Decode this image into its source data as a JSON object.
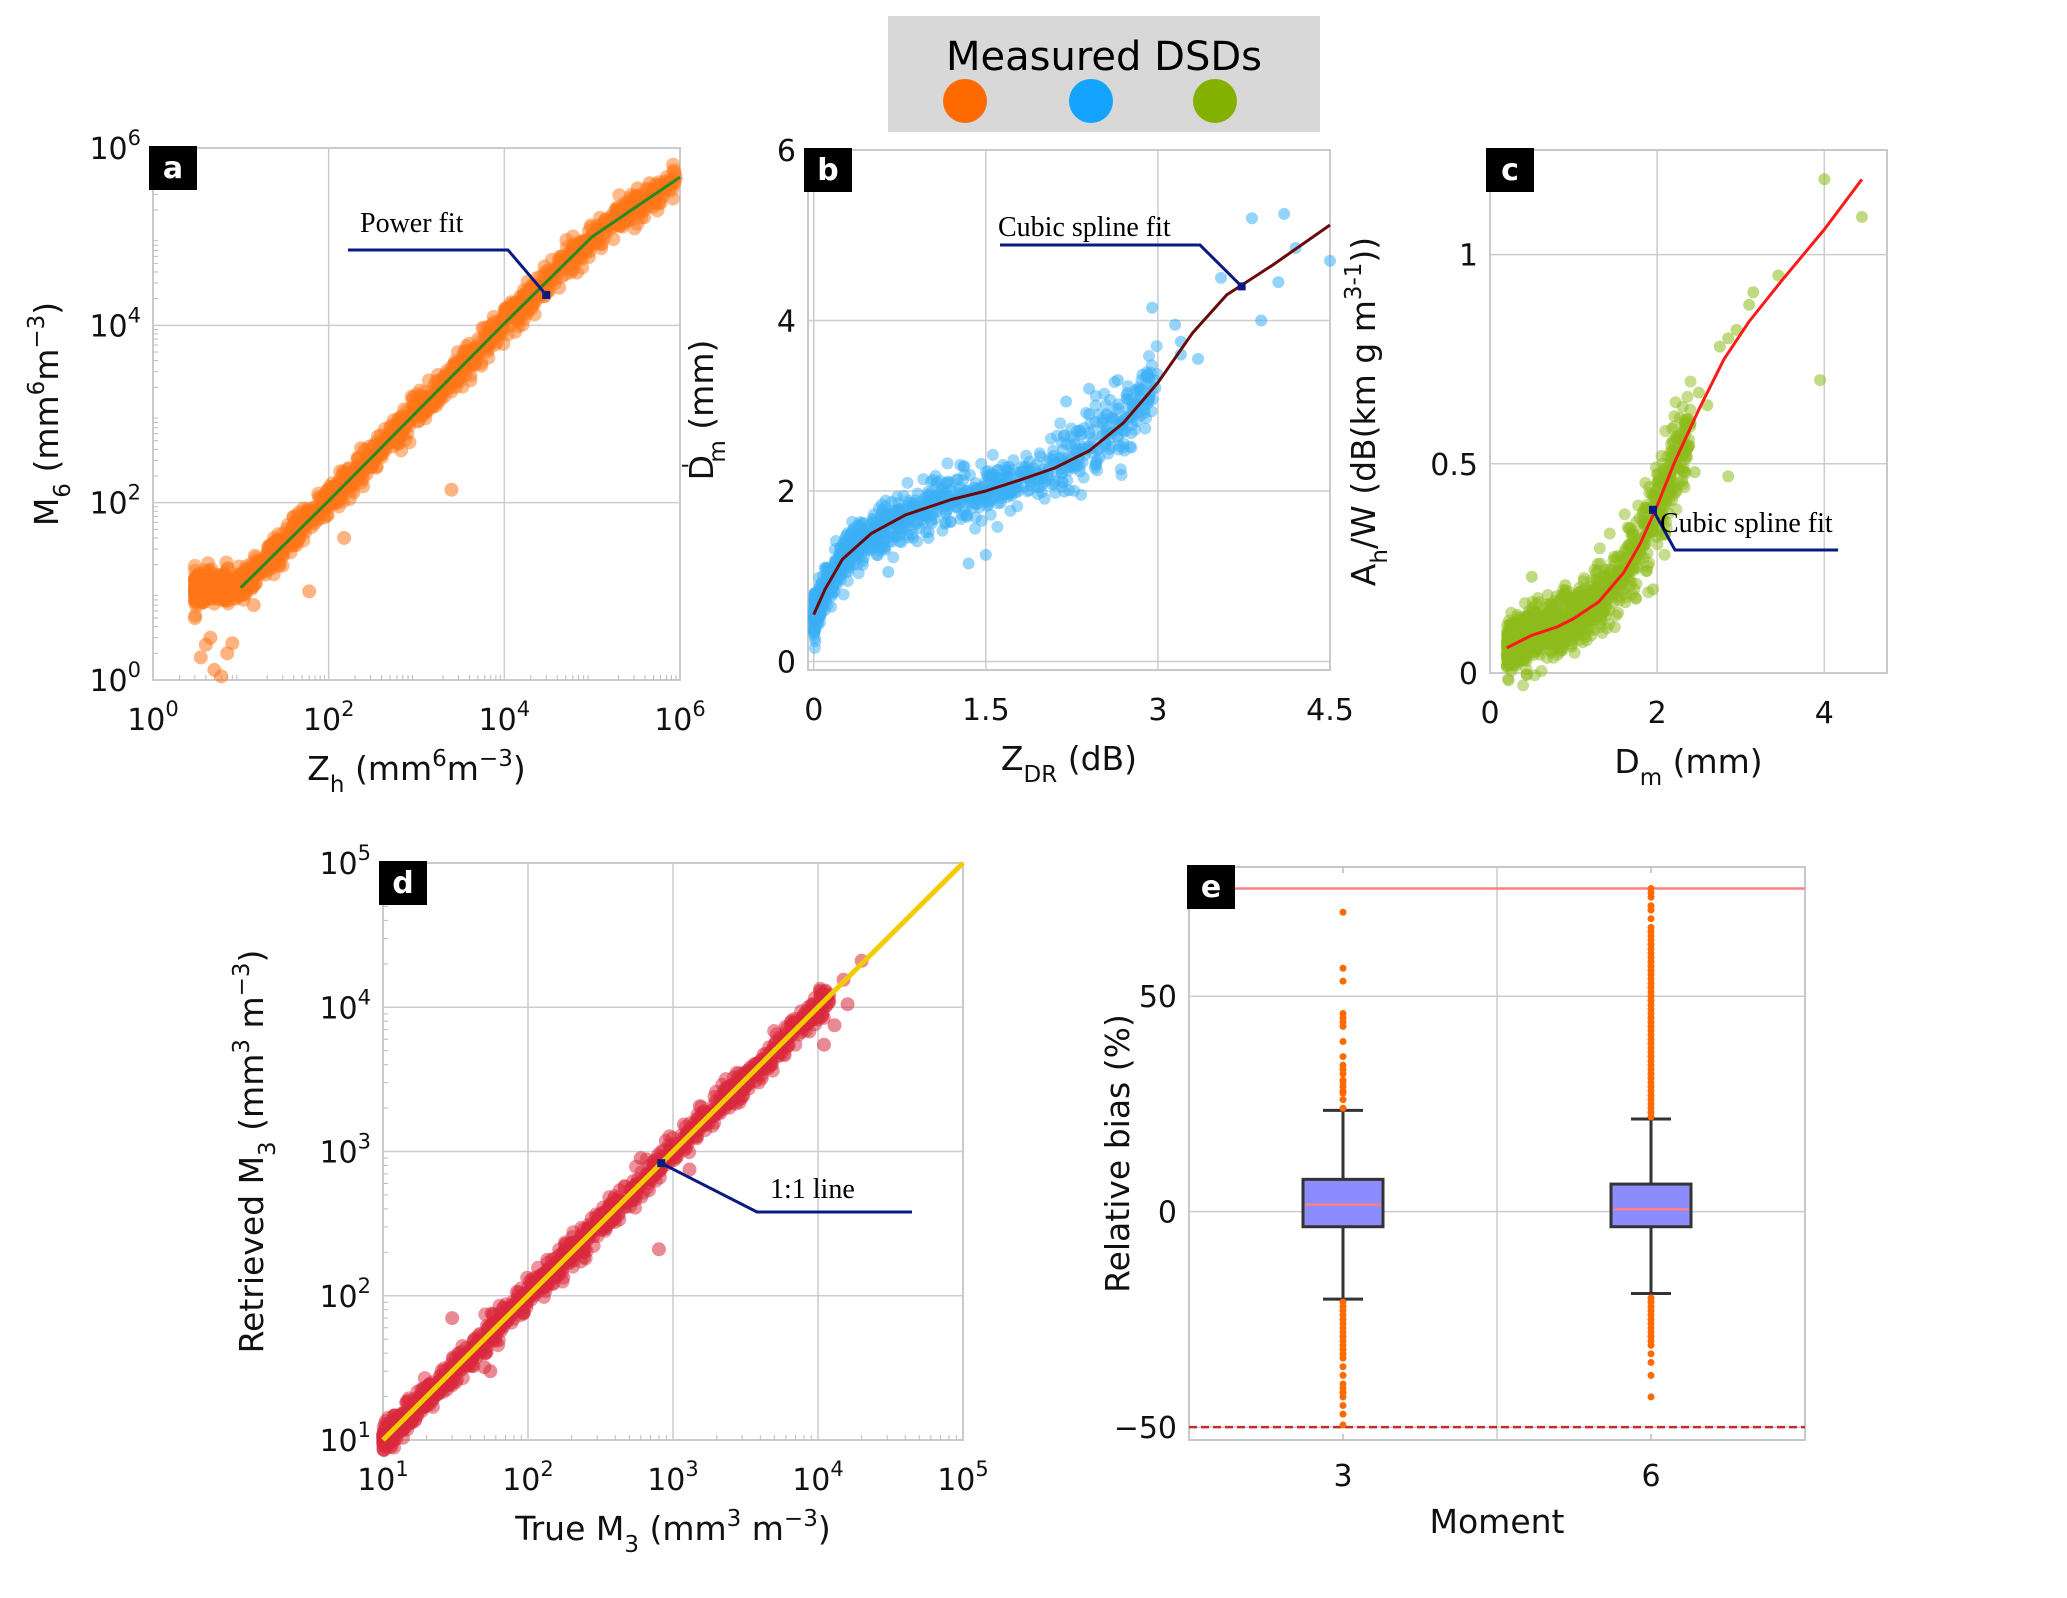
{
  "legend": {
    "title": "Measured DSDs",
    "background": "#d8d8d8",
    "swatches": [
      {
        "name": "orange",
        "color": "#ff6a00"
      },
      {
        "name": "blue",
        "color": "#14a4ff"
      },
      {
        "name": "green",
        "color": "#84b000"
      }
    ]
  },
  "chart_data": [
    {
      "id": "a",
      "panel_label": "a",
      "type": "scatter",
      "xscale": "log",
      "yscale": "log",
      "xlim": [
        1,
        1000000
      ],
      "ylim": [
        1,
        1000000
      ],
      "xticks": [
        {
          "v": 1,
          "base": "10",
          "exp": "0"
        },
        {
          "v": 100,
          "base": "10",
          "exp": "2"
        },
        {
          "v": 10000,
          "base": "10",
          "exp": "4"
        },
        {
          "v": 1000000,
          "base": "10",
          "exp": "6"
        }
      ],
      "yticks": [
        {
          "v": 1,
          "base": "10",
          "exp": "0"
        },
        {
          "v": 100,
          "base": "10",
          "exp": "2"
        },
        {
          "v": 10000,
          "base": "10",
          "exp": "4"
        },
        {
          "v": 1000000,
          "base": "10",
          "exp": "6"
        }
      ],
      "xlabel": {
        "main": "Z",
        "sub": "h",
        "rest": " (mm",
        "sup1": "6",
        "mid": "m",
        "sup2": "−3",
        "end": ")"
      },
      "ylabel": {
        "main": "M",
        "sub": "6",
        "rest": " (mm",
        "sup1": "6",
        "mid": "m",
        "sup2": "−3",
        "end": ")"
      },
      "grid": true,
      "point_color": "#ff7518",
      "fit": {
        "name": "Power fit",
        "color": "#228b22",
        "points": [
          [
            10,
            11
          ],
          [
            100,
            105
          ],
          [
            1000,
            1050
          ],
          [
            10000,
            10500
          ],
          [
            100000,
            100000
          ],
          [
            1000000,
            470000
          ]
        ]
      },
      "scatter_trend": {
        "x_range": [
          3,
          900000
        ],
        "spread_log": 0.09,
        "count": 1400
      },
      "outliers": [
        [
          3,
          5
        ],
        [
          4,
          2.5
        ],
        [
          3.5,
          1.8
        ],
        [
          5,
          1.3
        ],
        [
          6,
          1.1
        ],
        [
          4.5,
          3
        ],
        [
          7,
          2
        ],
        [
          8,
          2.6
        ],
        [
          14,
          7
        ],
        [
          60,
          10
        ],
        [
          150,
          40
        ],
        [
          2500,
          140
        ],
        [
          330000,
          350000
        ],
        [
          450000,
          400000
        ]
      ],
      "annotation": {
        "text": "Power fit",
        "anchor": [
          30000,
          22000
        ],
        "label_pos": [
          7500,
          95000
        ]
      }
    },
    {
      "id": "b",
      "panel_label": "b",
      "type": "scatter",
      "xscale": "linear",
      "yscale": "linear",
      "xlim": [
        -0.05,
        4.5
      ],
      "ylim": [
        -0.1,
        6
      ],
      "xticks": [
        {
          "v": 0,
          "label": "0"
        },
        {
          "v": 1.5,
          "label": "1.5"
        },
        {
          "v": 3,
          "label": "3"
        },
        {
          "v": 4.5,
          "label": "4.5"
        }
      ],
      "yticks": [
        {
          "v": 0,
          "label": "0"
        },
        {
          "v": 2,
          "label": "2"
        },
        {
          "v": 4,
          "label": "4"
        },
        {
          "v": 6,
          "label": "6"
        }
      ],
      "xlabel": {
        "main": "Z",
        "sub": "DR",
        "rest": " (dB)"
      },
      "ylabel": {
        "main": "D",
        "sub": "m",
        "prime": "'",
        "rest": " (mm)"
      },
      "grid": true,
      "point_color": "#3cb0f5",
      "fit": {
        "name": "Cubic spline fit",
        "color": "#6b0a0a",
        "points": [
          [
            0,
            0.55
          ],
          [
            0.1,
            0.85
          ],
          [
            0.25,
            1.2
          ],
          [
            0.5,
            1.5
          ],
          [
            0.8,
            1.72
          ],
          [
            1.2,
            1.9
          ],
          [
            1.5,
            2.0
          ],
          [
            1.8,
            2.13
          ],
          [
            2.1,
            2.27
          ],
          [
            2.4,
            2.47
          ],
          [
            2.7,
            2.8
          ],
          [
            3.0,
            3.27
          ],
          [
            3.3,
            3.85
          ],
          [
            3.6,
            4.3
          ],
          [
            4.0,
            4.65
          ],
          [
            4.5,
            5.12
          ]
        ]
      },
      "scatter_trend": {
        "x_range": [
          0,
          3.0
        ],
        "spread": 0.14,
        "count": 1100
      },
      "outliers": [
        [
          3.82,
          5.2
        ],
        [
          4.1,
          5.25
        ],
        [
          4.2,
          4.85
        ],
        [
          4.5,
          4.7
        ],
        [
          3.55,
          4.5
        ],
        [
          4.05,
          4.45
        ],
        [
          3.9,
          4.0
        ],
        [
          2.95,
          4.15
        ],
        [
          3.15,
          3.95
        ],
        [
          3.2,
          3.75
        ],
        [
          3.2,
          3.6
        ],
        [
          3.35,
          3.55
        ],
        [
          2.78,
          3.0
        ],
        [
          2.65,
          3.3
        ],
        [
          2.4,
          3.2
        ],
        [
          2.2,
          3.05
        ],
        [
          2.4,
          2.9
        ],
        [
          1.35,
          1.15
        ],
        [
          1.5,
          1.25
        ],
        [
          1.0,
          1.45
        ],
        [
          0.55,
          1.25
        ],
        [
          0.65,
          1.05
        ]
      ],
      "annotation": {
        "text": "Cubic spline fit",
        "anchor": [
          3.73,
          4.4
        ],
        "label_pos": [
          1.5,
          4.85
        ]
      }
    },
    {
      "id": "c",
      "panel_label": "c",
      "type": "scatter",
      "xscale": "linear",
      "yscale": "linear",
      "xlim": [
        0,
        4.75
      ],
      "ylim": [
        0,
        1.25
      ],
      "xticks": [
        {
          "v": 0,
          "label": "0"
        },
        {
          "v": 2,
          "label": "2"
        },
        {
          "v": 4,
          "label": "4"
        }
      ],
      "yticks": [
        {
          "v": 0,
          "label": "0"
        },
        {
          "v": 0.5,
          "label": "0.5"
        },
        {
          "v": 1,
          "label": "1"
        }
      ],
      "xlabel": {
        "main": "D",
        "sub": "m",
        "rest": " (mm)"
      },
      "ylabel": {
        "main": "A",
        "sub": "h",
        "rest": "/W (dB(km g m",
        "sup1": "3",
        "end": ")",
        "sup2": "-1",
        "end2": ")"
      },
      "grid": true,
      "point_color": "#8dbb1c",
      "fit": {
        "name": "Cubic spline fit",
        "color": "#ff1a1a",
        "points": [
          [
            0.2,
            0.06
          ],
          [
            0.5,
            0.09
          ],
          [
            0.8,
            0.11
          ],
          [
            1.0,
            0.13
          ],
          [
            1.3,
            0.17
          ],
          [
            1.6,
            0.24
          ],
          [
            1.8,
            0.31
          ],
          [
            2.0,
            0.4
          ],
          [
            2.2,
            0.5
          ],
          [
            2.5,
            0.63
          ],
          [
            2.8,
            0.75
          ],
          [
            3.1,
            0.84
          ],
          [
            3.5,
            0.94
          ],
          [
            4.0,
            1.06
          ],
          [
            4.45,
            1.18
          ]
        ]
      },
      "scatter_trend": {
        "x_range": [
          0.2,
          2.4
        ],
        "spread": 0.035,
        "count": 1100
      },
      "outliers": [
        [
          4.0,
          1.18
        ],
        [
          4.45,
          1.09
        ],
        [
          3.95,
          0.7
        ],
        [
          3.45,
          0.95
        ],
        [
          3.15,
          0.91
        ],
        [
          3.1,
          0.88
        ],
        [
          2.95,
          0.82
        ],
        [
          2.85,
          0.8
        ],
        [
          2.75,
          0.78
        ],
        [
          2.5,
          0.67
        ],
        [
          2.6,
          0.64
        ],
        [
          2.85,
          0.47
        ],
        [
          2.3,
          0.57
        ],
        [
          2.3,
          0.46
        ],
        [
          2.45,
          0.48
        ],
        [
          1.95,
          0.2
        ],
        [
          0.9,
          0.21
        ],
        [
          1.3,
          0.22
        ],
        [
          0.5,
          0.23
        ]
      ],
      "annotation": {
        "text": "Cubic spline fit",
        "anchor": [
          1.95,
          0.39
        ],
        "label_pos": [
          2.35,
          0.31
        ]
      }
    },
    {
      "id": "d",
      "panel_label": "d",
      "type": "scatter",
      "xscale": "log",
      "yscale": "log",
      "xlim": [
        10,
        100000
      ],
      "ylim": [
        10,
        100000
      ],
      "xticks": [
        {
          "v": 10,
          "base": "10",
          "exp": "1"
        },
        {
          "v": 100,
          "base": "10",
          "exp": "2"
        },
        {
          "v": 1000,
          "base": "10",
          "exp": "3"
        },
        {
          "v": 10000,
          "base": "10",
          "exp": "4"
        },
        {
          "v": 100000,
          "base": "10",
          "exp": "5"
        }
      ],
      "yticks": [
        {
          "v": 10,
          "base": "10",
          "exp": "1"
        },
        {
          "v": 100,
          "base": "10",
          "exp": "2"
        },
        {
          "v": 1000,
          "base": "10",
          "exp": "3"
        },
        {
          "v": 10000,
          "base": "10",
          "exp": "4"
        },
        {
          "v": 100000,
          "base": "10",
          "exp": "5"
        }
      ],
      "xlabel": {
        "main": "True M",
        "sub": "3",
        "rest": " (mm",
        "sup1": "3",
        "mid": " m",
        "sup2": "−3",
        "end": ")"
      },
      "ylabel": {
        "main": "Retrieved M",
        "sub": "3",
        "rest": " (mm",
        "sup1": "3",
        "mid": " m",
        "sup2": "−3",
        "end": ")"
      },
      "grid": true,
      "point_color": "#d9283c",
      "fit": {
        "name": "1:1 line",
        "color": "#f2cc00",
        "points": [
          [
            10,
            10
          ],
          [
            100000,
            100000
          ]
        ]
      },
      "scatter_trend": {
        "x_range": [
          10,
          12000
        ],
        "spread_log": 0.05,
        "count": 1300
      },
      "outliers": [
        [
          20000,
          21000
        ],
        [
          15000,
          15500
        ],
        [
          16000,
          10500
        ],
        [
          13000,
          7500
        ],
        [
          11000,
          5500
        ],
        [
          800,
          210
        ],
        [
          600,
          900
        ],
        [
          1300,
          750
        ],
        [
          50,
          32
        ],
        [
          55,
          30
        ],
        [
          30,
          70
        ],
        [
          12,
          12
        ]
      ],
      "annotation": {
        "text": "1:1 line",
        "anchor": [
          830,
          830
        ],
        "label_pos": [
          3200,
          520
        ]
      }
    },
    {
      "id": "e",
      "panel_label": "e",
      "type": "box",
      "xlim": [
        1.5,
        7.5
      ],
      "ylim": [
        -53,
        80
      ],
      "categories": [
        "3",
        "6"
      ],
      "cat_positions": [
        3,
        6
      ],
      "yticks": [
        {
          "v": -50,
          "label": "−50"
        },
        {
          "v": 0,
          "label": "0"
        },
        {
          "v": 50,
          "label": "50"
        }
      ],
      "xlabel": {
        "main": "Moment"
      },
      "ylabel": {
        "main": "Relative bias (%)"
      },
      "grid": true,
      "box_fill": "#8c8cff",
      "median_color": "#ff8080",
      "outlier_color": "#ff6a00",
      "reference_lines": [
        {
          "value": 75,
          "color": "#ff8080",
          "style": "solid"
        },
        {
          "value": -50,
          "color": "#c03030",
          "style": "dashed"
        }
      ],
      "series": [
        {
          "category": "3",
          "q1": -3.5,
          "median": 1.6,
          "q3": 7.5,
          "whisker_low": -20.3,
          "whisker_high": 23.5,
          "outliers": [
            69.5,
            56.5,
            53.5,
            46,
            45,
            44,
            43,
            39.5,
            36,
            34,
            33,
            32,
            30.5,
            30,
            29,
            28,
            27.5,
            26,
            24,
            -21,
            -22,
            -23,
            -24,
            -25,
            -26,
            -27,
            -28,
            -29,
            -30,
            -31,
            -32,
            -33,
            -34,
            -36,
            -38,
            -40,
            -41,
            -42,
            -43,
            -45,
            -47,
            -49.5
          ]
        },
        {
          "category": "6",
          "q1": -3.5,
          "median": 0.6,
          "q3": 6.4,
          "whisker_low": -19,
          "whisker_high": 21.5,
          "outliers": [
            75,
            74,
            73,
            71,
            70,
            68,
            66,
            65,
            64,
            63,
            62,
            61,
            60,
            59,
            58,
            57,
            56,
            55,
            54,
            53,
            52,
            51,
            50,
            49,
            48,
            47,
            46,
            45,
            44,
            43,
            42,
            41,
            40,
            39,
            38,
            37,
            36,
            35,
            34,
            33,
            32,
            31,
            30,
            29,
            28,
            27,
            26,
            25,
            24,
            23,
            22,
            -20,
            -21,
            -22,
            -23,
            -24,
            -25,
            -26,
            -27,
            -28,
            -29,
            -30,
            -31,
            -33,
            -35,
            -38,
            -43
          ]
        }
      ]
    }
  ]
}
